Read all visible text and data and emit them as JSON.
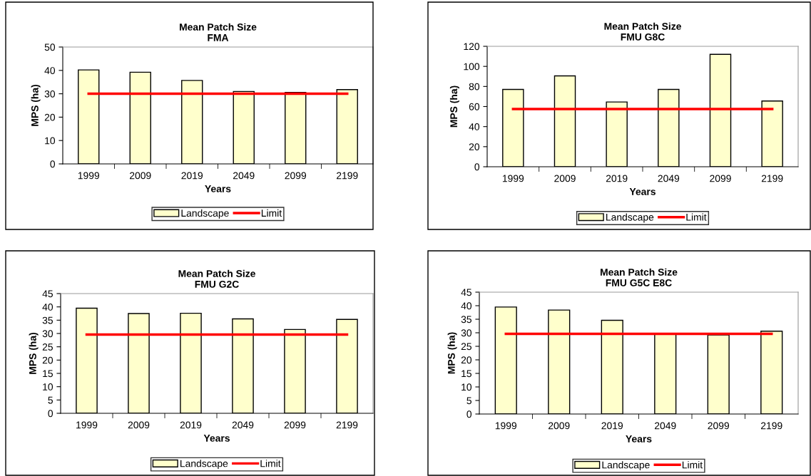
{
  "chart_data": [
    {
      "type": "bar",
      "title": "Mean Patch Size\nFMA",
      "xlabel": "Years",
      "ylabel": "MPS (ha)",
      "categories": [
        "1999",
        "2009",
        "2019",
        "2049",
        "2099",
        "2199"
      ],
      "ylim": [
        0,
        50
      ],
      "yticks": [
        0,
        10,
        20,
        30,
        40,
        50
      ],
      "grid": false,
      "legend": "bottom",
      "series": [
        {
          "name": "Landscape",
          "color": "#ffffcc",
          "values": [
            40.2,
            39.2,
            35.7,
            31.0,
            30.6,
            31.8
          ]
        },
        {
          "name": "Limit",
          "type": "line",
          "color": "#ff0000",
          "values": [
            30,
            30,
            30,
            30,
            30,
            30
          ]
        }
      ]
    },
    {
      "type": "bar",
      "title": "Mean Patch Size\nFMU G8C",
      "xlabel": "Years",
      "ylabel": "MPS (ha)",
      "categories": [
        "1999",
        "2009",
        "2019",
        "2049",
        "2099",
        "2199"
      ],
      "ylim": [
        0,
        120
      ],
      "yticks": [
        0,
        20,
        40,
        60,
        80,
        100,
        120
      ],
      "grid": false,
      "legend": "bottom",
      "series": [
        {
          "name": "Landscape",
          "color": "#ffffcc",
          "values": [
            77,
            90.5,
            64.5,
            77,
            112,
            65.5
          ]
        },
        {
          "name": "Limit",
          "type": "line",
          "color": "#ff0000",
          "values": [
            57.5,
            57.5,
            57.5,
            57.5,
            57.5,
            57.5
          ]
        }
      ]
    },
    {
      "type": "bar",
      "title": "Mean Patch Size\nFMU G2C",
      "xlabel": "Years",
      "ylabel": "MPS (ha)",
      "categories": [
        "1999",
        "2009",
        "2019",
        "2049",
        "2099",
        "2199"
      ],
      "ylim": [
        0,
        45
      ],
      "yticks": [
        0,
        5,
        10,
        15,
        20,
        25,
        30,
        35,
        40,
        45
      ],
      "grid": false,
      "legend": "bottom",
      "series": [
        {
          "name": "Landscape",
          "color": "#ffffcc",
          "values": [
            39.5,
            37.5,
            37.6,
            35.5,
            31.5,
            35.3
          ]
        },
        {
          "name": "Limit",
          "type": "line",
          "color": "#ff0000",
          "values": [
            29.6,
            29.6,
            29.6,
            29.6,
            29.6,
            29.6
          ]
        }
      ]
    },
    {
      "type": "bar",
      "title": "Mean Patch Size\nFMU G5C E8C",
      "xlabel": "Years",
      "ylabel": "MPS (ha)",
      "categories": [
        "1999",
        "2009",
        "2019",
        "2049",
        "2099",
        "2199"
      ],
      "ylim": [
        0,
        45
      ],
      "yticks": [
        0,
        5,
        10,
        15,
        20,
        25,
        30,
        35,
        40,
        45
      ],
      "grid": false,
      "legend": "bottom",
      "series": [
        {
          "name": "Landscape",
          "color": "#ffffcc",
          "values": [
            39.5,
            38.4,
            34.6,
            29.6,
            29.2,
            30.6
          ]
        },
        {
          "name": "Limit",
          "type": "line",
          "color": "#ff0000",
          "values": [
            29.6,
            29.6,
            29.6,
            29.6,
            29.6,
            29.6
          ]
        }
      ]
    }
  ]
}
